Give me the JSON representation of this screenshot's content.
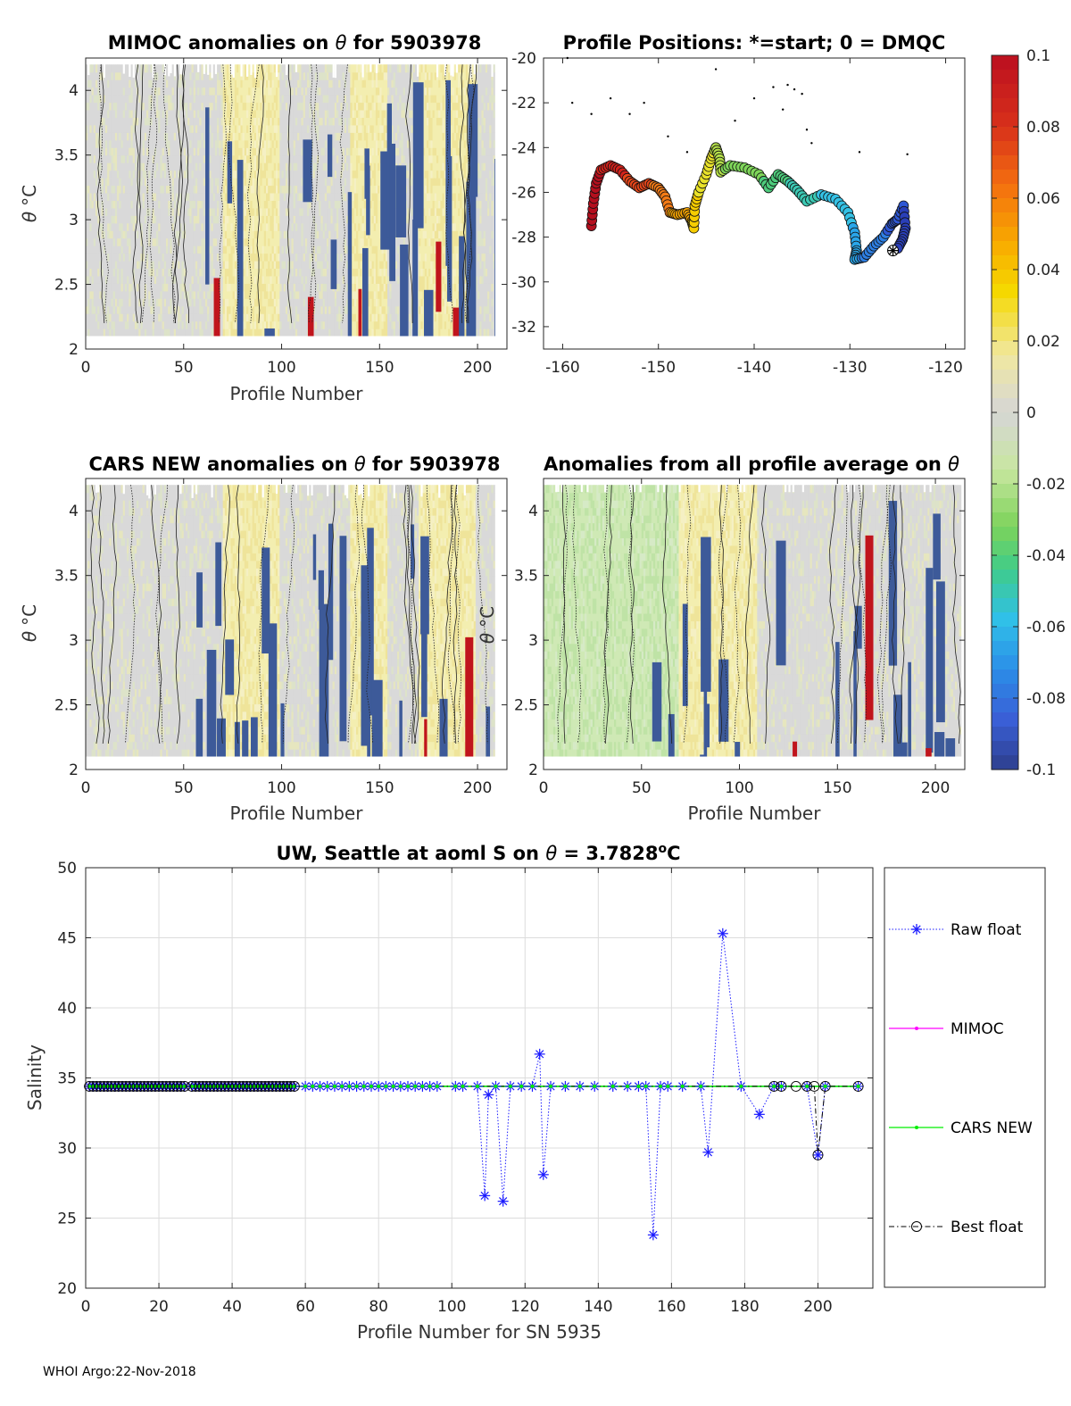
{
  "footer": "WHOI Argo:22-Nov-2018",
  "colorbar": {
    "tick_labels": [
      "0.1",
      "0.08",
      "0.06",
      "0.04",
      "0.02",
      "0",
      "-0.02",
      "-0.04",
      "-0.06",
      "-0.08",
      "-0.1"
    ],
    "range": [
      -0.1,
      0.1
    ],
    "colors": [
      "#2d3e8c",
      "#3a5fd6",
      "#2b8ee8",
      "#30c0e8",
      "#3fcc8a",
      "#7dd35a",
      "#c8e6a0",
      "#d6d6d6",
      "#f0e8a0",
      "#f5d800",
      "#f8a800",
      "#f36e10",
      "#d8301a",
      "#bb0f20"
    ]
  },
  "chart_data": [
    {
      "id": "mimoc",
      "type": "heatmap",
      "title_prefix": "MIMOC anomalies on ",
      "title_symbol": "θ",
      "title_suffix": "  for 5903978",
      "xlabel": "Profile Number",
      "ylabel_symbol": "θ",
      "ylabel_unit": "°C",
      "xlim": [
        0,
        215
      ],
      "ylim": [
        2,
        4.25
      ],
      "xticks": [
        "0",
        "50",
        "100",
        "150",
        "200"
      ],
      "yticks": [
        "2",
        "2.5",
        "3",
        "3.5",
        "4"
      ]
    },
    {
      "id": "positions",
      "type": "scatter",
      "title": "Profile Positions: *=start; 0 = DMQC",
      "xlim": [
        -162,
        -118
      ],
      "ylim": [
        -33,
        -20
      ],
      "xticks": [
        "-160",
        "-150",
        "-140",
        "-130",
        "-120"
      ],
      "yticks": [
        "-20",
        "-22",
        "-24",
        "-26",
        "-28",
        "-30",
        "-32"
      ],
      "track": [
        [
          -157,
          -27.5
        ],
        [
          -156.8,
          -26.5
        ],
        [
          -156.5,
          -25.6
        ],
        [
          -156,
          -25
        ],
        [
          -155,
          -24.8
        ],
        [
          -154,
          -25
        ],
        [
          -153,
          -25.5
        ],
        [
          -152,
          -25.8
        ],
        [
          -151,
          -25.6
        ],
        [
          -150,
          -25.8
        ],
        [
          -149.3,
          -26.2
        ],
        [
          -148.8,
          -26.9
        ],
        [
          -148,
          -27
        ],
        [
          -147,
          -26.9
        ],
        [
          -146.5,
          -27.3
        ],
        [
          -146.3,
          -27.6
        ],
        [
          -146.2,
          -26.6
        ],
        [
          -145.8,
          -26
        ],
        [
          -145,
          -25.2
        ],
        [
          -144.5,
          -24.5
        ],
        [
          -144,
          -24
        ],
        [
          -143.6,
          -24.5
        ],
        [
          -143.5,
          -25.1
        ],
        [
          -142.5,
          -24.8
        ],
        [
          -141,
          -24.9
        ],
        [
          -139.5,
          -25.2
        ],
        [
          -138.5,
          -25.8
        ],
        [
          -137.5,
          -25.2
        ],
        [
          -136.5,
          -25.5
        ],
        [
          -135.5,
          -25.9
        ],
        [
          -134.5,
          -26.4
        ],
        [
          -133,
          -26.1
        ],
        [
          -131.5,
          -26.3
        ],
        [
          -130.2,
          -26.9
        ],
        [
          -129.5,
          -27.8
        ],
        [
          -129.3,
          -28.6
        ],
        [
          -129.5,
          -29
        ],
        [
          -128.5,
          -28.9
        ],
        [
          -127.5,
          -28.4
        ],
        [
          -126.5,
          -28
        ],
        [
          -125.6,
          -27.4
        ],
        [
          -125,
          -27.2
        ],
        [
          -124.4,
          -26.6
        ],
        [
          -124.2,
          -27.6
        ],
        [
          -124.5,
          -28.1
        ],
        [
          -125,
          -28.5
        ]
      ],
      "start": [
        -125.5,
        -28.6
      ],
      "climatology_points": [
        [
          -159.5,
          -20
        ],
        [
          -159,
          -22
        ],
        [
          -157,
          -22.5
        ],
        [
          -155,
          -21.8
        ],
        [
          -153,
          -22.5
        ],
        [
          -151.5,
          -22
        ],
        [
          -149,
          -23.5
        ],
        [
          -147,
          -24.2
        ],
        [
          -144,
          -20.5
        ],
        [
          -140,
          -21.8
        ],
        [
          -138,
          -21.3
        ],
        [
          -137,
          -22.3
        ],
        [
          -136.5,
          -21.2
        ],
        [
          -135.8,
          -21.4
        ],
        [
          -135,
          -21.6
        ],
        [
          -134.5,
          -23.2
        ],
        [
          -134,
          -23.8
        ],
        [
          -129,
          -24.2
        ],
        [
          -124,
          -24.3
        ],
        [
          -142,
          -22.8
        ]
      ]
    },
    {
      "id": "cars",
      "type": "heatmap",
      "title_prefix": "CARS NEW anomalies on ",
      "title_symbol": "θ",
      "title_suffix": " for 5903978",
      "xlabel": "Profile Number",
      "ylabel_symbol": "θ",
      "ylabel_unit": "°C",
      "xlim": [
        0,
        215
      ],
      "ylim": [
        2,
        4.25
      ],
      "xticks": [
        "0",
        "50",
        "100",
        "150",
        "200"
      ],
      "yticks": [
        "2",
        "2.5",
        "3",
        "3.5",
        "4"
      ]
    },
    {
      "id": "avg",
      "type": "heatmap",
      "title_prefix": "Anomalies from all profile average on ",
      "title_symbol": "θ",
      "title_suffix": "",
      "xlabel": "Profile Number",
      "ylabel_symbol": "θ",
      "ylabel_unit": "°C",
      "xlim": [
        0,
        215
      ],
      "ylim": [
        2,
        4.25
      ],
      "xticks": [
        "0",
        "50",
        "100",
        "150",
        "200"
      ],
      "yticks": [
        "2",
        "2.5",
        "3",
        "3.5",
        "4"
      ]
    },
    {
      "id": "salinity",
      "type": "line",
      "title_prefix": "UW, Seattle at aoml S on ",
      "title_symbol": "θ",
      "title_value": " = 3.7828",
      "title_unit_sup": "o",
      "title_unit": "C",
      "xlabel": "Profile Number for SN 5935",
      "ylabel": "Salinity",
      "xlim": [
        0,
        215
      ],
      "ylim": [
        20,
        50
      ],
      "xticks": [
        "0",
        "20",
        "40",
        "60",
        "80",
        "100",
        "120",
        "140",
        "160",
        "180",
        "200"
      ],
      "yticks": [
        "20",
        "25",
        "30",
        "35",
        "40",
        "45",
        "50"
      ],
      "legend": [
        "Raw float",
        "MIMOC",
        "CARS NEW",
        "Best float"
      ],
      "legend_colors": [
        "#1a1aff",
        "#ff00ff",
        "#00ee00",
        "#000000"
      ],
      "reference_value": 34.4,
      "raw_outliers": [
        [
          109,
          26.6
        ],
        [
          110,
          33.8
        ],
        [
          114,
          26.2
        ],
        [
          124,
          36.7
        ],
        [
          125,
          28.1
        ],
        [
          155,
          23.8
        ],
        [
          170,
          29.7
        ],
        [
          174,
          45.3
        ],
        [
          184,
          32.4
        ],
        [
          200,
          29.5
        ]
      ],
      "raw_x": [
        1,
        2,
        3,
        4,
        5,
        6,
        7,
        8,
        9,
        10,
        11,
        12,
        13,
        14,
        15,
        16,
        17,
        18,
        19,
        20,
        21,
        22,
        23,
        24,
        25,
        26,
        27,
        29,
        30,
        31,
        32,
        33,
        34,
        35,
        36,
        37,
        38,
        39,
        40,
        41,
        42,
        43,
        44,
        45,
        46,
        47,
        48,
        49,
        50,
        51,
        52,
        53,
        54,
        55,
        56,
        57,
        60,
        62,
        64,
        66,
        68,
        70,
        72,
        74,
        76,
        78,
        80,
        82,
        84,
        86,
        88,
        90,
        92,
        94,
        96,
        101,
        103,
        107,
        112,
        116,
        119,
        122,
        127,
        131,
        135,
        139,
        144,
        148,
        151,
        153,
        157,
        159,
        163,
        168,
        179,
        188,
        190,
        197,
        202,
        211
      ],
      "best_x": [
        1,
        2,
        3,
        4,
        5,
        6,
        7,
        8,
        9,
        10,
        11,
        12,
        13,
        14,
        15,
        16,
        17,
        18,
        19,
        20,
        21,
        22,
        23,
        24,
        25,
        26,
        27,
        29,
        30,
        31,
        32,
        33,
        34,
        35,
        36,
        37,
        38,
        39,
        40,
        41,
        42,
        43,
        44,
        45,
        46,
        47,
        48,
        49,
        50,
        51,
        52,
        53,
        54,
        55,
        56,
        57,
        188,
        190,
        194,
        197,
        199,
        202,
        211
      ],
      "best_outlier": [
        200,
        29.5
      ]
    }
  ]
}
